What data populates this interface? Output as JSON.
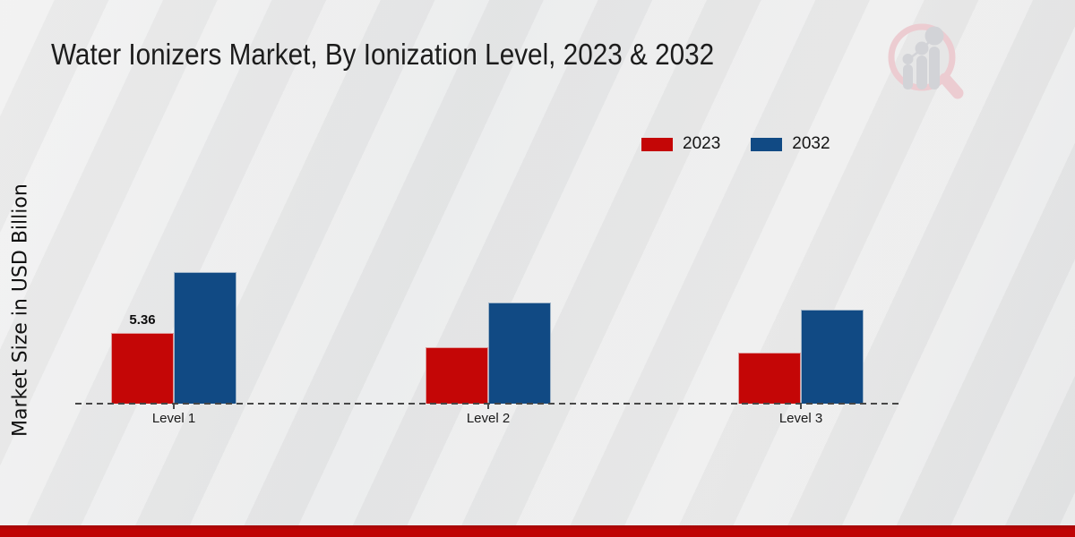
{
  "title": "Water Ionizers Market, By Ionization Level, 2023 & 2032",
  "y_axis_label": "Market Size in USD Billion",
  "colors": {
    "series_2023": "#c40606",
    "series_2032": "#114a84",
    "footer_bar": "#c00404",
    "axis": "#474747",
    "background": "#e9eaeb"
  },
  "legend": {
    "items": [
      {
        "label": "2023",
        "color": "#c40606"
      },
      {
        "label": "2032",
        "color": "#114a84"
      }
    ]
  },
  "watermark": "magnifier-bar-chart-logo",
  "chart_data": {
    "type": "bar",
    "title": "Water Ionizers Market, By Ionization Level, 2023 & 2032",
    "xlabel": "",
    "ylabel": "Market Size in USD Billion",
    "categories": [
      "Level 1",
      "Level 2",
      "Level 3"
    ],
    "series": [
      {
        "name": "2023",
        "color": "#c40606",
        "values": [
          5.36,
          4.3,
          3.9
        ],
        "data_labels": [
          "5.36",
          "",
          ""
        ]
      },
      {
        "name": "2032",
        "color": "#114a84",
        "values": [
          10.0,
          7.7,
          7.1
        ],
        "data_labels": [
          "",
          "",
          ""
        ]
      }
    ],
    "ylim": [
      0,
      11
    ],
    "grid": false,
    "axis_style": "dashed-baseline-only",
    "legend_position": "top-right"
  }
}
